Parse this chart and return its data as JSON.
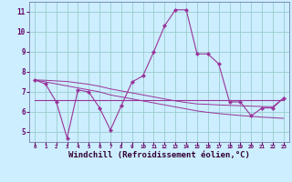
{
  "background_color": "#cceeff",
  "grid_color": "#99cccc",
  "line_color": "#993399",
  "marker_color": "#993399",
  "xlabel": "Windchill (Refroidissement éolien,°C)",
  "xlabel_fontsize": 6.5,
  "xlim": [
    -0.5,
    23.5
  ],
  "ylim": [
    4.5,
    11.5
  ],
  "yticks": [
    5,
    6,
    7,
    8,
    9,
    10,
    11
  ],
  "xticks": [
    0,
    1,
    2,
    3,
    4,
    5,
    6,
    7,
    8,
    9,
    10,
    11,
    12,
    13,
    14,
    15,
    16,
    17,
    18,
    19,
    20,
    21,
    22,
    23
  ],
  "series_main": {
    "x": [
      0,
      1,
      2,
      3,
      4,
      5,
      6,
      7,
      8,
      9,
      10,
      11,
      12,
      13,
      14,
      15,
      16,
      17,
      18,
      19,
      20,
      21,
      22,
      23
    ],
    "y": [
      7.6,
      7.4,
      6.5,
      4.7,
      7.1,
      7.0,
      6.2,
      5.1,
      6.3,
      7.5,
      7.8,
      9.0,
      10.3,
      11.1,
      11.1,
      8.9,
      8.9,
      8.4,
      6.5,
      6.5,
      5.8,
      6.2,
      6.2,
      6.7
    ]
  },
  "series_flat": {
    "x": [
      0,
      23
    ],
    "y": [
      6.6,
      6.6
    ]
  },
  "series_lower": {
    "x": [
      0,
      1,
      2,
      3,
      4,
      5,
      6,
      7,
      8,
      9,
      10,
      11,
      12,
      13,
      14,
      15,
      16,
      17,
      18,
      19,
      20,
      21,
      22,
      23
    ],
    "y": [
      7.6,
      7.5,
      7.4,
      7.3,
      7.2,
      7.1,
      7.0,
      6.85,
      6.75,
      6.65,
      6.55,
      6.45,
      6.35,
      6.25,
      6.15,
      6.05,
      5.98,
      5.92,
      5.87,
      5.82,
      5.78,
      5.74,
      5.71,
      5.68
    ]
  },
  "series_upper": {
    "x": [
      0,
      1,
      2,
      3,
      4,
      5,
      6,
      7,
      8,
      9,
      10,
      11,
      12,
      13,
      14,
      15,
      16,
      17,
      18,
      19,
      20,
      21,
      22,
      23
    ],
    "y": [
      7.6,
      7.58,
      7.55,
      7.52,
      7.45,
      7.38,
      7.28,
      7.15,
      7.05,
      6.95,
      6.85,
      6.75,
      6.65,
      6.55,
      6.47,
      6.4,
      6.38,
      6.35,
      6.33,
      6.31,
      6.29,
      6.27,
      6.26,
      6.7
    ]
  }
}
